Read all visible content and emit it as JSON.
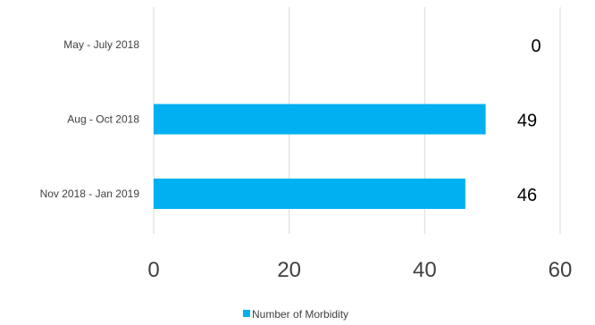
{
  "chart_data": {
    "type": "bar",
    "orientation": "horizontal",
    "categories": [
      "May - July 2018",
      "Aug - Oct 2018",
      "Nov 2018 - Jan 2019"
    ],
    "series": [
      {
        "name": "Number of Morbidity",
        "values": [
          0,
          49,
          46
        ],
        "color": "#00B0F0"
      }
    ],
    "data_labels": [
      "0",
      "49",
      "46"
    ],
    "xlim": [
      0,
      60
    ],
    "xticks": [
      0,
      20,
      40,
      60
    ],
    "grid": true,
    "legend_position": "bottom"
  }
}
